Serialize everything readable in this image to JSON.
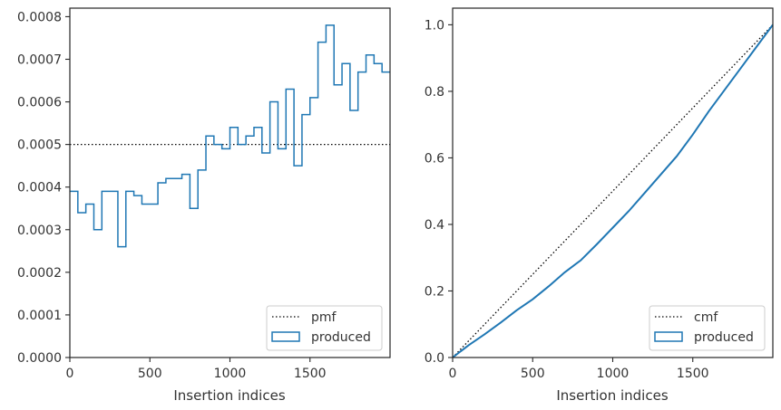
{
  "chart_data": [
    {
      "type": "histogram-step",
      "xlabel": "Insertion indices",
      "xlim": [
        0,
        2000
      ],
      "ylim": [
        0,
        0.00082
      ],
      "xticks": [
        0,
        500,
        1000,
        1500
      ],
      "yticks": [
        0,
        0.0001,
        0.0002,
        0.0003,
        0.0004,
        0.0005,
        0.0006,
        0.0007,
        0.0008
      ],
      "xtick_labels": [
        "0",
        "500",
        "1000",
        "1500"
      ],
      "ytick_labels": [
        "0.0000",
        "0.0001",
        "0.0002",
        "0.0003",
        "0.0004",
        "0.0005",
        "0.0006",
        "0.0007",
        "0.0008"
      ],
      "reference_line": {
        "name": "pmf",
        "y": 0.0005,
        "style": "dotted",
        "color": "#000000"
      },
      "series": [
        {
          "name": "produced",
          "color": "#1f77b4",
          "bin_width": 50,
          "values": [
            0.00039,
            0.00034,
            0.00036,
            0.0003,
            0.00039,
            0.00039,
            0.00026,
            0.00039,
            0.00038,
            0.00036,
            0.00036,
            0.00041,
            0.00042,
            0.00042,
            0.00043,
            0.00035,
            0.00044,
            0.00052,
            0.0005,
            0.00049,
            0.00054,
            0.0005,
            0.00052,
            0.00054,
            0.00048,
            0.0006,
            0.00049,
            0.00063,
            0.00045,
            0.00057,
            0.00061,
            0.00074,
            0.00078,
            0.00064,
            0.00069,
            0.00058,
            0.00067,
            0.00071,
            0.00069,
            0.00067
          ]
        }
      ],
      "legend": {
        "position": "lower-right",
        "entries": [
          "pmf",
          "produced"
        ]
      }
    },
    {
      "type": "line",
      "xlabel": "Insertion indices",
      "xlim": [
        0,
        2000
      ],
      "ylim": [
        0,
        1.05
      ],
      "xticks": [
        0,
        500,
        1000,
        1500
      ],
      "yticks": [
        0,
        0.2,
        0.4,
        0.6,
        0.8,
        1.0
      ],
      "xtick_labels": [
        "0",
        "500",
        "1000",
        "1500"
      ],
      "ytick_labels": [
        "0.0",
        "0.2",
        "0.4",
        "0.6",
        "0.8",
        "1.0"
      ],
      "reference_line": {
        "name": "cmf",
        "x": [
          0,
          2000
        ],
        "y": [
          0,
          1.0
        ],
        "style": "dotted",
        "color": "#000000"
      },
      "series": [
        {
          "name": "produced",
          "color": "#1f77b4",
          "x": [
            0,
            100,
            200,
            300,
            400,
            500,
            600,
            700,
            800,
            900,
            1000,
            1100,
            1200,
            1300,
            1400,
            1500,
            1600,
            1700,
            1800,
            1900,
            2000
          ],
          "y": [
            0,
            0.037,
            0.07,
            0.105,
            0.142,
            0.175,
            0.214,
            0.256,
            0.292,
            0.34,
            0.39,
            0.44,
            0.495,
            0.55,
            0.605,
            0.67,
            0.74,
            0.805,
            0.87,
            0.935,
            1.0
          ]
        }
      ],
      "legend": {
        "position": "lower-right",
        "entries": [
          "cmf",
          "produced"
        ]
      }
    }
  ]
}
